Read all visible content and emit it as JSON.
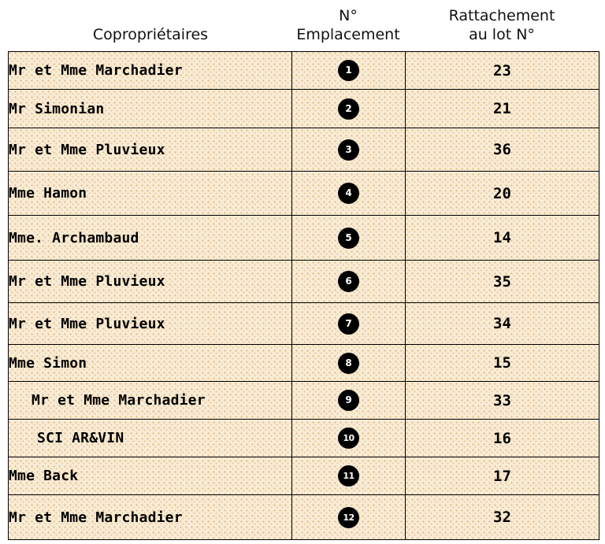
{
  "headers": {
    "owner": "Copropriétaires",
    "place_line1": "N°",
    "place_line2": "Emplacement",
    "lot_line1": "Rattachement",
    "lot_line2": "au lot N°"
  },
  "rows": [
    {
      "owner": "Mr et Mme Marchadier",
      "place": "1",
      "lot": "23"
    },
    {
      "owner": "Mr Simonian",
      "place": "2",
      "lot": "21"
    },
    {
      "owner": "Mr et Mme Pluvieux",
      "place": "3",
      "lot": "36"
    },
    {
      "owner": "Mme Hamon",
      "place": "4",
      "lot": "20"
    },
    {
      "owner": "Mme. Archambaud",
      "place": "5",
      "lot": "14"
    },
    {
      "owner": "Mr et Mme Pluvieux",
      "place": "6",
      "lot": "35"
    },
    {
      "owner": "Mr et Mme Pluvieux",
      "place": "7",
      "lot": "34"
    },
    {
      "owner": "Mme Simon",
      "place": "8",
      "lot": "15"
    },
    {
      "owner": "Mr et Mme Marchadier",
      "place": "9",
      "lot": "33"
    },
    {
      "owner": "SCI AR&VIN",
      "place": "10",
      "lot": "16"
    },
    {
      "owner": "Mme Back",
      "place": "11",
      "lot": "17"
    },
    {
      "owner": "Mr et Mme Marchadier",
      "place": "12",
      "lot": "32"
    }
  ]
}
